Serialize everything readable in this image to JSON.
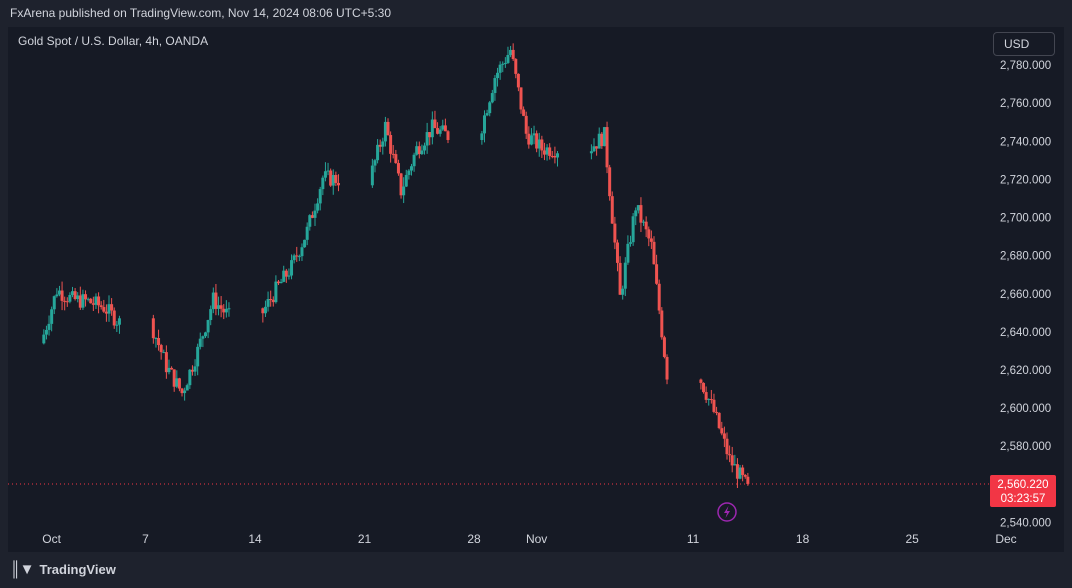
{
  "header": {
    "published": "FxArena published on TradingView.com, Nov 14, 2024 08:06 UTC+5:30"
  },
  "symbol": {
    "title": "Gold Spot / U.S. Dollar, 4h, OANDA"
  },
  "currency": {
    "label": "USD"
  },
  "footer": {
    "brand": "TradingView"
  },
  "colors": {
    "up": "#26a69a",
    "down": "#ef5350",
    "background": "#161a25",
    "text": "#d1d4dc",
    "last_price_bg": "#f23645",
    "alert_icon": "#9c27b0"
  },
  "chart_data": {
    "type": "candlestick",
    "title": "Gold Spot / U.S. Dollar, 4h, OANDA",
    "currency": "USD",
    "y_ticks": [
      "2,780.000",
      "2,760.000",
      "2,740.000",
      "2,720.000",
      "2,700.000",
      "2,680.000",
      "2,660.000",
      "2,640.000",
      "2,620.000",
      "2,600.000",
      "2,580.000",
      "2,540.000"
    ],
    "y_tick_values": [
      2780,
      2760,
      2740,
      2720,
      2700,
      2680,
      2660,
      2640,
      2620,
      2600,
      2580,
      2540
    ],
    "ylim": [
      2535,
      2800
    ],
    "x_ticks": [
      "Oct",
      "7",
      "14",
      "21",
      "28",
      "Nov",
      "11",
      "18",
      "25",
      "Dec"
    ],
    "x_tick_dates": [
      "2024-10-01",
      "2024-10-07",
      "2024-10-14",
      "2024-10-21",
      "2024-10-28",
      "2024-11-01",
      "2024-11-11",
      "2024-11-18",
      "2024-11-25",
      "2024-12-01"
    ],
    "x_range": [
      "2024-09-30",
      "2024-12-01"
    ],
    "last_price": "2,560.220",
    "last_price_value": 2560.22,
    "countdown": "03:23:57",
    "daily_closes": [
      {
        "date": "2024-09-30",
        "close": 2634
      },
      {
        "date": "2024-10-01",
        "close": 2662
      },
      {
        "date": "2024-10-02",
        "close": 2657
      },
      {
        "date": "2024-10-03",
        "close": 2656
      },
      {
        "date": "2024-10-04",
        "close": 2653
      },
      {
        "date": "2024-10-07",
        "close": 2645
      },
      {
        "date": "2024-10-08",
        "close": 2622
      },
      {
        "date": "2024-10-09",
        "close": 2608
      },
      {
        "date": "2024-10-10",
        "close": 2630
      },
      {
        "date": "2024-10-11",
        "close": 2657
      },
      {
        "date": "2024-10-14",
        "close": 2648
      },
      {
        "date": "2024-10-15",
        "close": 2662
      },
      {
        "date": "2024-10-16",
        "close": 2674
      },
      {
        "date": "2024-10-17",
        "close": 2693
      },
      {
        "date": "2024-10-18",
        "close": 2721
      },
      {
        "date": "2024-10-21",
        "close": 2720
      },
      {
        "date": "2024-10-22",
        "close": 2748
      },
      {
        "date": "2024-10-23",
        "close": 2714
      },
      {
        "date": "2024-10-24",
        "close": 2736
      },
      {
        "date": "2024-10-25",
        "close": 2747
      },
      {
        "date": "2024-10-28",
        "close": 2743
      },
      {
        "date": "2024-10-29",
        "close": 2774
      },
      {
        "date": "2024-10-30",
        "close": 2788
      },
      {
        "date": "2024-10-31",
        "close": 2744
      },
      {
        "date": "2024-11-01",
        "close": 2736
      },
      {
        "date": "2024-11-04",
        "close": 2736
      },
      {
        "date": "2024-11-05",
        "close": 2743
      },
      {
        "date": "2024-11-06",
        "close": 2658
      },
      {
        "date": "2024-11-07",
        "close": 2706
      },
      {
        "date": "2024-11-08",
        "close": 2685
      },
      {
        "date": "2024-11-11",
        "close": 2618
      },
      {
        "date": "2024-11-12",
        "close": 2598
      },
      {
        "date": "2024-11-13",
        "close": 2573
      },
      {
        "date": "2024-11-14",
        "close": 2560.22
      }
    ]
  }
}
